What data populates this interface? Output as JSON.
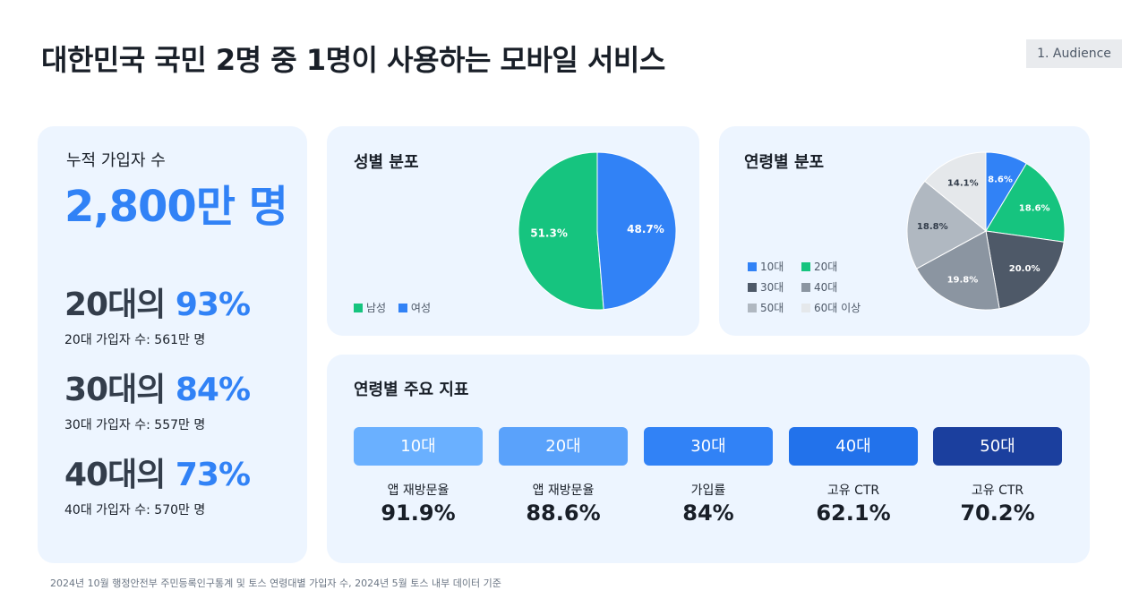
{
  "header": {
    "title": "대한민국 국민 2명 중 1명이 사용하는 모바일 서비스",
    "section_tag": "1. Audience"
  },
  "subscribers": {
    "label": "누적 가입자 수",
    "value": "2,800만 명",
    "stats": [
      {
        "age": "20대의 ",
        "pct": "93%",
        "detail": "20대 가입자 수: 561만 명"
      },
      {
        "age": "30대의 ",
        "pct": "84%",
        "detail": "30대 가입자 수: 557만 명"
      },
      {
        "age": "40대의 ",
        "pct": "73%",
        "detail": "40대 가입자 수: 570만 명"
      }
    ]
  },
  "chart_data": [
    {
      "type": "pie",
      "title": "성별 분포",
      "series": [
        {
          "name": "남성",
          "value": 51.3,
          "label": "51.3%",
          "color": "#16c47f"
        },
        {
          "name": "여성",
          "value": 48.7,
          "label": "48.7%",
          "color": "#3182f6"
        }
      ],
      "legend": "bottom-left"
    },
    {
      "type": "pie",
      "title": "연령별 분포",
      "series": [
        {
          "name": "10대",
          "value": 8.6,
          "label": "8.6%",
          "color": "#3182f6"
        },
        {
          "name": "20대",
          "value": 18.6,
          "label": "18.6%",
          "color": "#16c47f"
        },
        {
          "name": "30대",
          "value": 20.0,
          "label": "20.0%",
          "color": "#4e5968"
        },
        {
          "name": "40대",
          "value": 19.8,
          "label": "19.8%",
          "color": "#8b95a1"
        },
        {
          "name": "50대",
          "value": 18.8,
          "label": "18.8%",
          "color": "#b0b8c1"
        },
        {
          "name": "60대 이상",
          "value": 14.1,
          "label": "14.1%",
          "color": "#e5e8eb"
        }
      ],
      "legend": "left"
    }
  ],
  "metrics": {
    "title": "연령별 주요 지표",
    "items": [
      {
        "age": "10대",
        "label": "앱 재방문율",
        "value": "91.9%",
        "color": "#6ab0ff"
      },
      {
        "age": "20대",
        "label": "앱 재방문율",
        "value": "88.6%",
        "color": "#5aa2fb"
      },
      {
        "age": "30대",
        "label": "가입률",
        "value": "84%",
        "color": "#3182f6"
      },
      {
        "age": "40대",
        "label": "고유 CTR",
        "value": "62.1%",
        "color": "#2272eb"
      },
      {
        "age": "50대",
        "label": "고유 CTR",
        "value": "70.2%",
        "color": "#1b3f9e"
      }
    ]
  },
  "footnote": "2024년 10월 행정안전부 주민등록인구통계 및 토스 연령대별 가입자 수, 2024년 5월 토스 내부 데이터 기준"
}
